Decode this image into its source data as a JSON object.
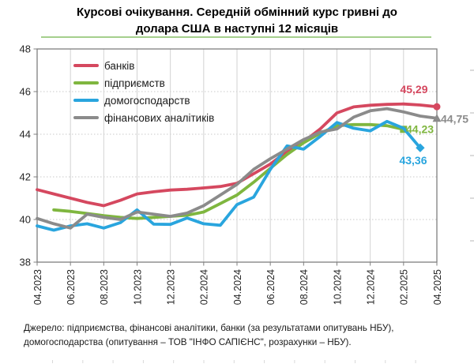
{
  "title": {
    "line1": "Курсові очікування. Середній обмінний курс гривні до",
    "line2": "долара США в наступні 12 місяців"
  },
  "source": {
    "line1": "Джерело: підприємства, фінансові аналітики, банки (за результатами опитувань НБУ),",
    "line2": "домогосподарства (опитування – ТОВ \"ІНФО САПІЄНС\", розрахунки – НБУ)."
  },
  "colors": {
    "title_underline": "#a5cf8d",
    "axis": "#7f7f7f",
    "vertical_gridline": "#d2d2d2",
    "horizontal_gridline": "#c9c9c9",
    "tick_label_text": "#262626"
  },
  "chart_data": {
    "type": "line",
    "title": "Курсові очікування. Середній обмінний курс гривні до долара США в наступні 12 місяців",
    "xlabel": "",
    "ylabel": "",
    "ylim": [
      38,
      48
    ],
    "yticks": [
      38,
      40,
      42,
      44,
      46,
      48
    ],
    "grid": true,
    "legend_position": "top-left",
    "x": [
      "04.2023",
      "05.2023",
      "06.2023",
      "07.2023",
      "08.2023",
      "09.2023",
      "10.2023",
      "11.2023",
      "12.2023",
      "01.2024",
      "02.2024",
      "03.2024",
      "04.2024",
      "05.2024",
      "06.2024",
      "07.2024",
      "08.2024",
      "09.2024",
      "10.2024",
      "11.2024",
      "12.2024",
      "01.2025",
      "02.2025",
      "03.2025",
      "04.2025"
    ],
    "xticklabels": [
      "04.2023",
      "06.2023",
      "08.2023",
      "10.2023",
      "12.2023",
      "02.2024",
      "04.2024",
      "06.2024",
      "08.2024",
      "10.2024",
      "12.2024",
      "02.2025",
      "04.2025"
    ],
    "series": [
      {
        "key": "banks",
        "name": "банків",
        "color": "#d5485f",
        "marker": "circle",
        "end_label": "45,29",
        "values": [
          41.4,
          41.2,
          41.0,
          40.8,
          40.65,
          40.9,
          41.2,
          41.3,
          41.38,
          41.42,
          41.48,
          41.55,
          41.7,
          42.15,
          42.6,
          43.2,
          43.65,
          44.25,
          45.0,
          45.28,
          45.36,
          45.4,
          45.42,
          45.37,
          45.29
        ]
      },
      {
        "key": "enterprises",
        "name": "підприємств",
        "color": "#7fb63f",
        "marker": "square",
        "end_label": "44,23",
        "values": [
          null,
          40.45,
          40.38,
          40.28,
          40.18,
          40.1,
          40.05,
          40.1,
          40.15,
          40.2,
          40.35,
          40.75,
          41.15,
          41.75,
          42.4,
          43.05,
          43.6,
          44.05,
          44.4,
          44.45,
          44.45,
          44.4,
          44.23,
          null,
          null
        ]
      },
      {
        "key": "households",
        "name": "домогосподарств",
        "color": "#29a5de",
        "marker": "diamond",
        "end_label": "43,36",
        "values": [
          39.7,
          39.5,
          39.7,
          39.8,
          39.6,
          39.85,
          40.45,
          39.78,
          39.77,
          40.07,
          39.8,
          39.73,
          40.7,
          41.05,
          42.35,
          43.45,
          43.3,
          43.9,
          44.55,
          44.28,
          44.16,
          44.6,
          44.28,
          43.36,
          null
        ]
      },
      {
        "key": "analysts",
        "name": "фінансових аналітиків",
        "color": "#8b8b8b",
        "marker": "triangle",
        "end_label": "44,75",
        "values": [
          40.05,
          39.8,
          39.6,
          40.25,
          40.1,
          40.0,
          40.35,
          40.25,
          40.15,
          40.3,
          40.65,
          41.15,
          41.65,
          42.35,
          42.85,
          43.3,
          43.75,
          44.1,
          44.25,
          44.8,
          45.1,
          45.2,
          45.05,
          44.85,
          44.75
        ]
      }
    ]
  }
}
